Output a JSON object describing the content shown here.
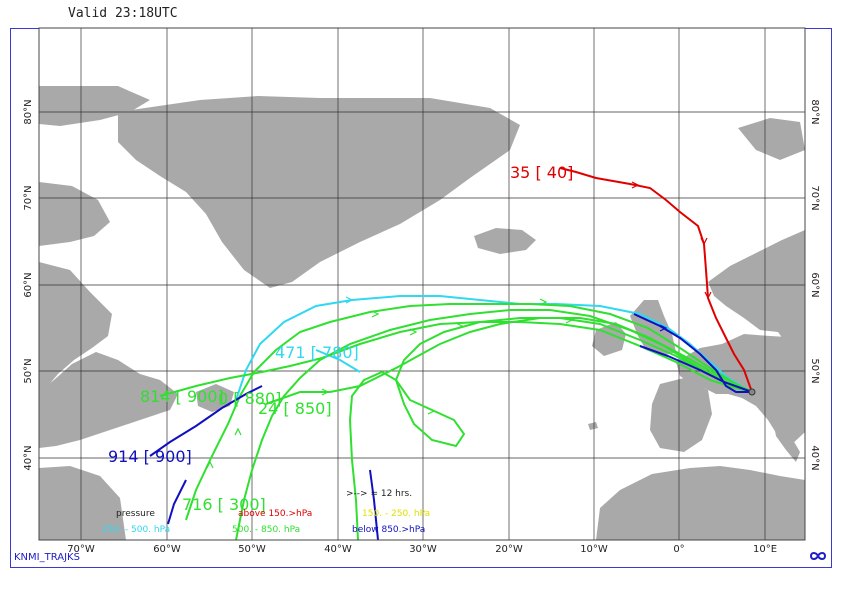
{
  "header": {
    "valid_time": "Valid 23:18UTC"
  },
  "footer": {
    "program_label": "KNMI_TRAJKS",
    "logo_icon": "knmi-logo-icon"
  },
  "map": {
    "projection": "lat-lon",
    "lon_labels": [
      "70°W",
      "60°W",
      "50°W",
      "40°W",
      "30°W",
      "20°W",
      "10°W",
      "0°",
      "10°E"
    ],
    "lat_labels_left": [
      "40°N",
      "50°N",
      "60°N",
      "70°N",
      "80°N"
    ],
    "lat_labels_right": [
      "40°N",
      "50°N",
      "60°N",
      "70°N",
      "80°N"
    ],
    "land_color": "#a9a9a9",
    "grid_color": "#333333"
  },
  "trajectories": [
    {
      "label": "35 [ 40]",
      "color": "#e00000"
    },
    {
      "label": "471 [ 780]",
      "color": "#30d8f0"
    },
    {
      "label": "814 [ 900]",
      "color": "#30e030"
    },
    {
      "label": "0 [ 880]",
      "color": "#30e030"
    },
    {
      "label": "24 [ 850]",
      "color": "#30e030"
    },
    {
      "label": "716 [ 300]",
      "color": "#30e030"
    },
    {
      "label": "914 [ 900]",
      "color": "#1010c0"
    }
  ],
  "legend": {
    "title": "pressure",
    "interval_note": ">-->  = 12 hrs.",
    "classes": [
      {
        "label": "above  150.>hPa",
        "color": "#e00000"
      },
      {
        "label": "150. -  250. hPa",
        "color": "#e0e000"
      },
      {
        "label": "250. -  500. hPa",
        "color": "#30d8f0"
      },
      {
        "label": "500. -   850. hPa",
        "color": "#30e030"
      },
      {
        "label": "below  850.>hPa",
        "color": "#1010c0"
      }
    ]
  }
}
